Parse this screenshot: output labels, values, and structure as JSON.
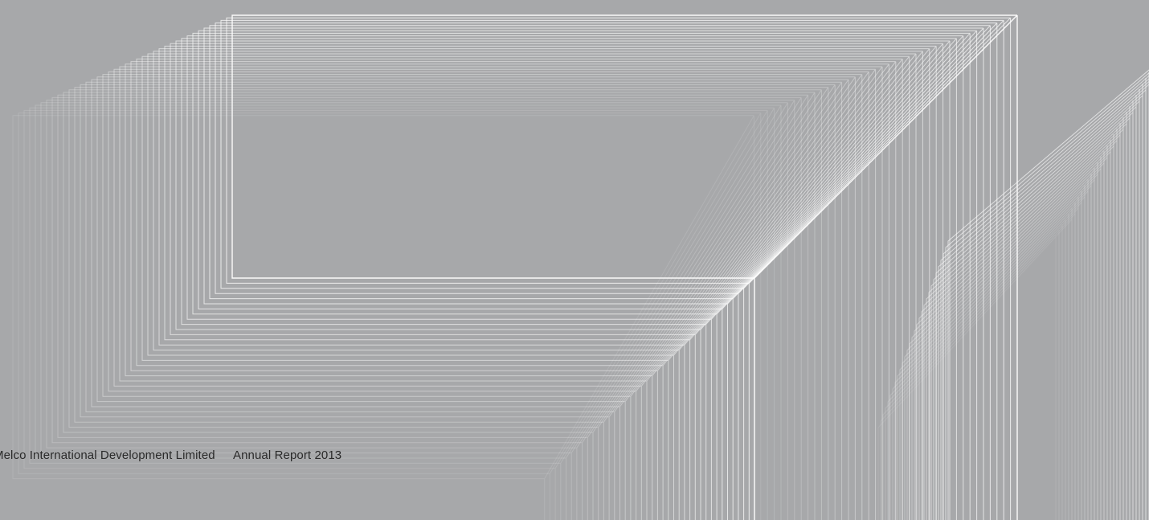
{
  "footer": {
    "company": "Melco International Development Limited",
    "report": "Annual Report 2013"
  },
  "colors": {
    "background": "#a7a8aa",
    "line": "#ffffff",
    "text": "#2a2a2a"
  }
}
